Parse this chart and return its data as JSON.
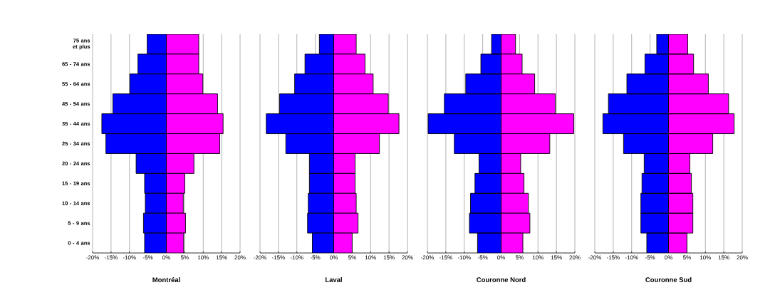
{
  "chart_data": [
    {
      "type": "bar",
      "orientation": "horizontal",
      "stacked": true,
      "xlabel": "Montréal",
      "grid": "x",
      "categories": [
        "75 ans et plus",
        "65 - 74 ans",
        "55 - 64 ans",
        "45 - 54 ans",
        "35 - 44 ans",
        "25 - 34 ans",
        "20 - 24 ans",
        "15 - 19 ans",
        "10 - 14 ans",
        "5 - 9 ans",
        "0 - 4 ans"
      ],
      "series": [
        {
          "color": "#0000ff",
          "values": [
            -5.2,
            -7.7,
            -9.9,
            -14.5,
            -17.5,
            -16.4,
            -8.2,
            -5.9,
            -5.7,
            -6.2,
            -5.9
          ]
        },
        {
          "color": "#ff00ff",
          "values": [
            8.8,
            8.8,
            9.9,
            13.9,
            15.4,
            14.5,
            7.5,
            5.0,
            4.6,
            5.2,
            4.7
          ]
        }
      ],
      "xlim": [
        -20,
        20
      ],
      "xticks": [
        {
          "value": -20,
          "label": "-20%"
        },
        {
          "value": -15,
          "label": "-15%"
        },
        {
          "value": -10,
          "label": "-10%"
        },
        {
          "value": -5,
          "label": "-5%"
        },
        {
          "value": 0,
          "label": "0%"
        },
        {
          "value": 5,
          "label": "5%"
        },
        {
          "value": 10,
          "label": "10%"
        },
        {
          "value": 15,
          "label": "15%"
        },
        {
          "value": 20,
          "label": "20%"
        }
      ]
    },
    {
      "type": "bar",
      "orientation": "horizontal",
      "stacked": true,
      "xlabel": "Laval",
      "grid": "x",
      "tick_labels": "x",
      "categories": [
        null,
        null,
        null,
        null,
        null,
        null,
        null,
        null,
        null,
        null,
        null
      ],
      "series": [
        {
          "color": "#0000ff",
          "values": [
            -3.9,
            -7.8,
            -10.6,
            -14.7,
            -18.3,
            -13.0,
            -6.6,
            -6.6,
            -6.9,
            -7.1,
            -5.8
          ]
        },
        {
          "color": "#ff00ff",
          "values": [
            6.1,
            8.5,
            10.7,
            14.8,
            17.7,
            12.4,
            5.8,
            5.8,
            6.1,
            6.6,
            5.0
          ]
        }
      ],
      "xlim": [
        -20,
        20
      ],
      "xticks": [
        {
          "value": -20,
          "label": "-20%"
        },
        {
          "value": -15,
          "label": "-15%"
        },
        {
          "value": -10,
          "label": "-10%"
        },
        {
          "value": -5,
          "label": "-5%"
        },
        {
          "value": 0,
          "label": "0%"
        },
        {
          "value": 5,
          "label": "5%"
        },
        {
          "value": 10,
          "label": "10%"
        },
        {
          "value": 15,
          "label": "15%"
        },
        {
          "value": 20,
          "label": "20%"
        }
      ]
    },
    {
      "type": "bar",
      "orientation": "horizontal",
      "stacked": true,
      "xlabel": "Couronne Nord",
      "grid": "x",
      "tick_labels": "x",
      "categories": [
        null,
        null,
        null,
        null,
        null,
        null,
        null,
        null,
        null,
        null,
        null
      ],
      "series": [
        {
          "color": "#0000ff",
          "values": [
            -2.6,
            -5.5,
            -9.6,
            -15.4,
            -19.8,
            -12.7,
            -6.0,
            -7.1,
            -8.3,
            -8.6,
            -6.4
          ]
        },
        {
          "color": "#ff00ff",
          "values": [
            3.9,
            5.7,
            9.1,
            14.7,
            19.7,
            13.2,
            5.3,
            6.2,
            7.4,
            7.8,
            5.9
          ]
        }
      ],
      "xlim": [
        -20,
        20
      ],
      "xticks": [
        {
          "value": -20,
          "label": "-20%"
        },
        {
          "value": -15,
          "label": "-15%"
        },
        {
          "value": -10,
          "label": "-10%"
        },
        {
          "value": -5,
          "label": "-5%"
        },
        {
          "value": 0,
          "label": "0%"
        },
        {
          "value": 5,
          "label": "5%"
        },
        {
          "value": 10,
          "label": "10%"
        },
        {
          "value": 15,
          "label": "15%"
        },
        {
          "value": 20,
          "label": "20%"
        }
      ]
    },
    {
      "type": "bar",
      "orientation": "horizontal",
      "stacked": true,
      "xlabel": "Couronne Sud",
      "grid": "x",
      "tick_labels": "x",
      "categories": [
        null,
        null,
        null,
        null,
        null,
        null,
        null,
        null,
        null,
        null,
        null
      ],
      "series": [
        {
          "color": "#0000ff",
          "values": [
            -3.2,
            -6.4,
            -11.3,
            -16.3,
            -17.8,
            -12.2,
            -6.6,
            -7.2,
            -7.5,
            -7.5,
            -5.9
          ]
        },
        {
          "color": "#ff00ff",
          "values": [
            5.2,
            6.8,
            10.8,
            16.3,
            17.8,
            12.0,
            5.8,
            6.2,
            6.6,
            6.6,
            5.0
          ]
        }
      ],
      "xlim": [
        -20,
        20
      ],
      "xticks": [
        {
          "value": -20,
          "label": "-20%"
        },
        {
          "value": -15,
          "label": "-15%"
        },
        {
          "value": -10,
          "label": "-10%"
        },
        {
          "value": -5,
          "label": "-5%"
        },
        {
          "value": 0,
          "label": "0%"
        },
        {
          "value": 5,
          "label": "5%"
        },
        {
          "value": 10,
          "label": "10%"
        },
        {
          "value": 15,
          "label": "15%"
        },
        {
          "value": 20,
          "label": "20%"
        }
      ]
    }
  ]
}
